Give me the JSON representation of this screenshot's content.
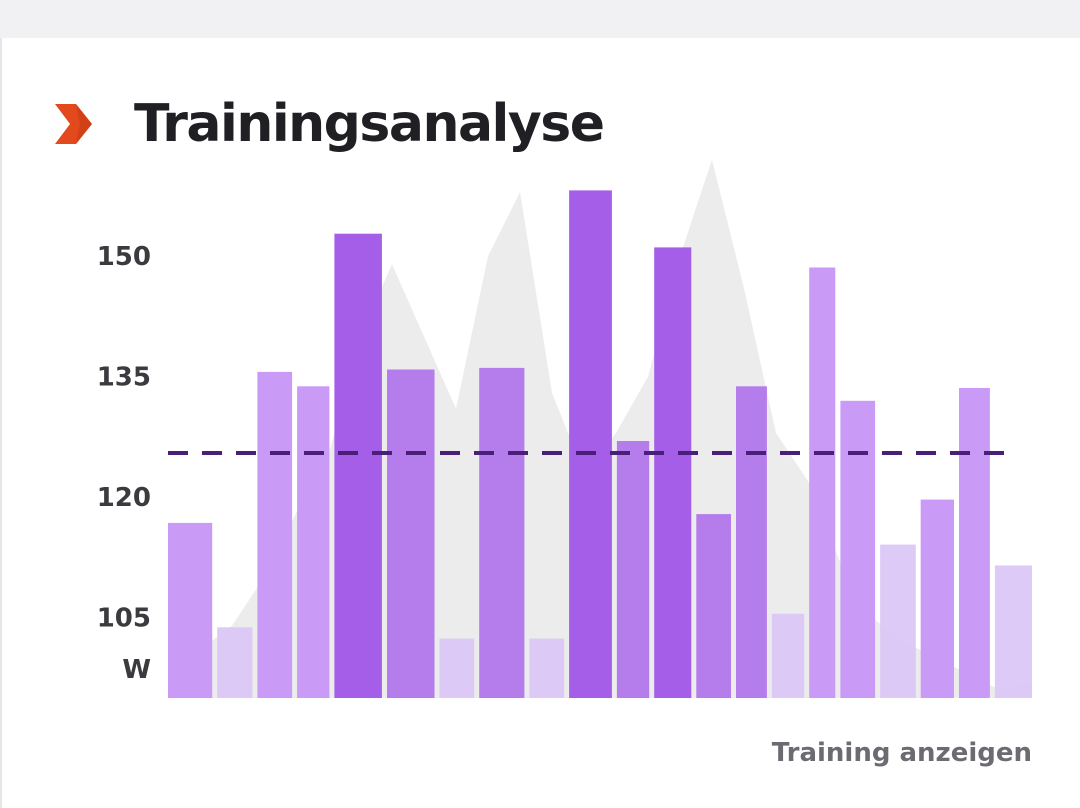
{
  "header": {
    "title": "Trainingsanalyse",
    "icon": "chevron-right-icon",
    "accent_color": "#e2491c"
  },
  "footer": {
    "link_label": "Training anzeigen"
  },
  "chart_data": {
    "type": "bar",
    "title": "Trainingsanalyse",
    "ylabel": "W",
    "yticks": [
      150,
      135,
      120,
      105
    ],
    "ylim": [
      95,
      157
    ],
    "average_line": 125.5,
    "bars": [
      {
        "value": 116.8,
        "weight": 0.93,
        "level": 1
      },
      {
        "value": 103.8,
        "weight": 0.74,
        "level": 0
      },
      {
        "value": 135.6,
        "weight": 0.73,
        "level": 1
      },
      {
        "value": 133.8,
        "weight": 0.68,
        "level": 1
      },
      {
        "value": 152.8,
        "weight": 1.0,
        "level": 3
      },
      {
        "value": 135.9,
        "weight": 1.0,
        "level": 2
      },
      {
        "value": 102.4,
        "weight": 0.73,
        "level": 0
      },
      {
        "value": 136.1,
        "weight": 0.95,
        "level": 2
      },
      {
        "value": 102.4,
        "weight": 0.73,
        "level": 0
      },
      {
        "value": 158.2,
        "weight": 0.9,
        "level": 3
      },
      {
        "value": 127.0,
        "weight": 0.68,
        "level": 2
      },
      {
        "value": 151.1,
        "weight": 0.78,
        "level": 3
      },
      {
        "value": 117.9,
        "weight": 0.73,
        "level": 2
      },
      {
        "value": 133.8,
        "weight": 0.65,
        "level": 2
      },
      {
        "value": 105.5,
        "weight": 0.68,
        "level": 0
      },
      {
        "value": 148.6,
        "weight": 0.55,
        "level": 1
      },
      {
        "value": 132.0,
        "weight": 0.73,
        "level": 1
      },
      {
        "value": 114.1,
        "weight": 0.75,
        "level": 0
      },
      {
        "value": 119.7,
        "weight": 0.7,
        "level": 1
      },
      {
        "value": 133.6,
        "weight": 0.65,
        "level": 1
      },
      {
        "value": 111.5,
        "weight": 0.78,
        "level": 0
      }
    ],
    "background_profile": [
      103,
      101,
      104,
      110,
      118,
      125,
      140,
      149,
      140,
      131,
      150,
      158,
      133,
      123,
      128,
      135,
      150,
      162,
      146,
      128,
      122,
      112,
      105,
      102,
      100,
      98,
      96,
      97
    ],
    "colors": {
      "levels": [
        "#dcc7f6",
        "#c99af6",
        "#b57cec",
        "#a55ee8"
      ],
      "background_profile": "#ececed",
      "average_line": "#4a1f7a",
      "level_opacity": [
        0.95,
        1.0,
        1.0,
        1.0
      ]
    }
  }
}
